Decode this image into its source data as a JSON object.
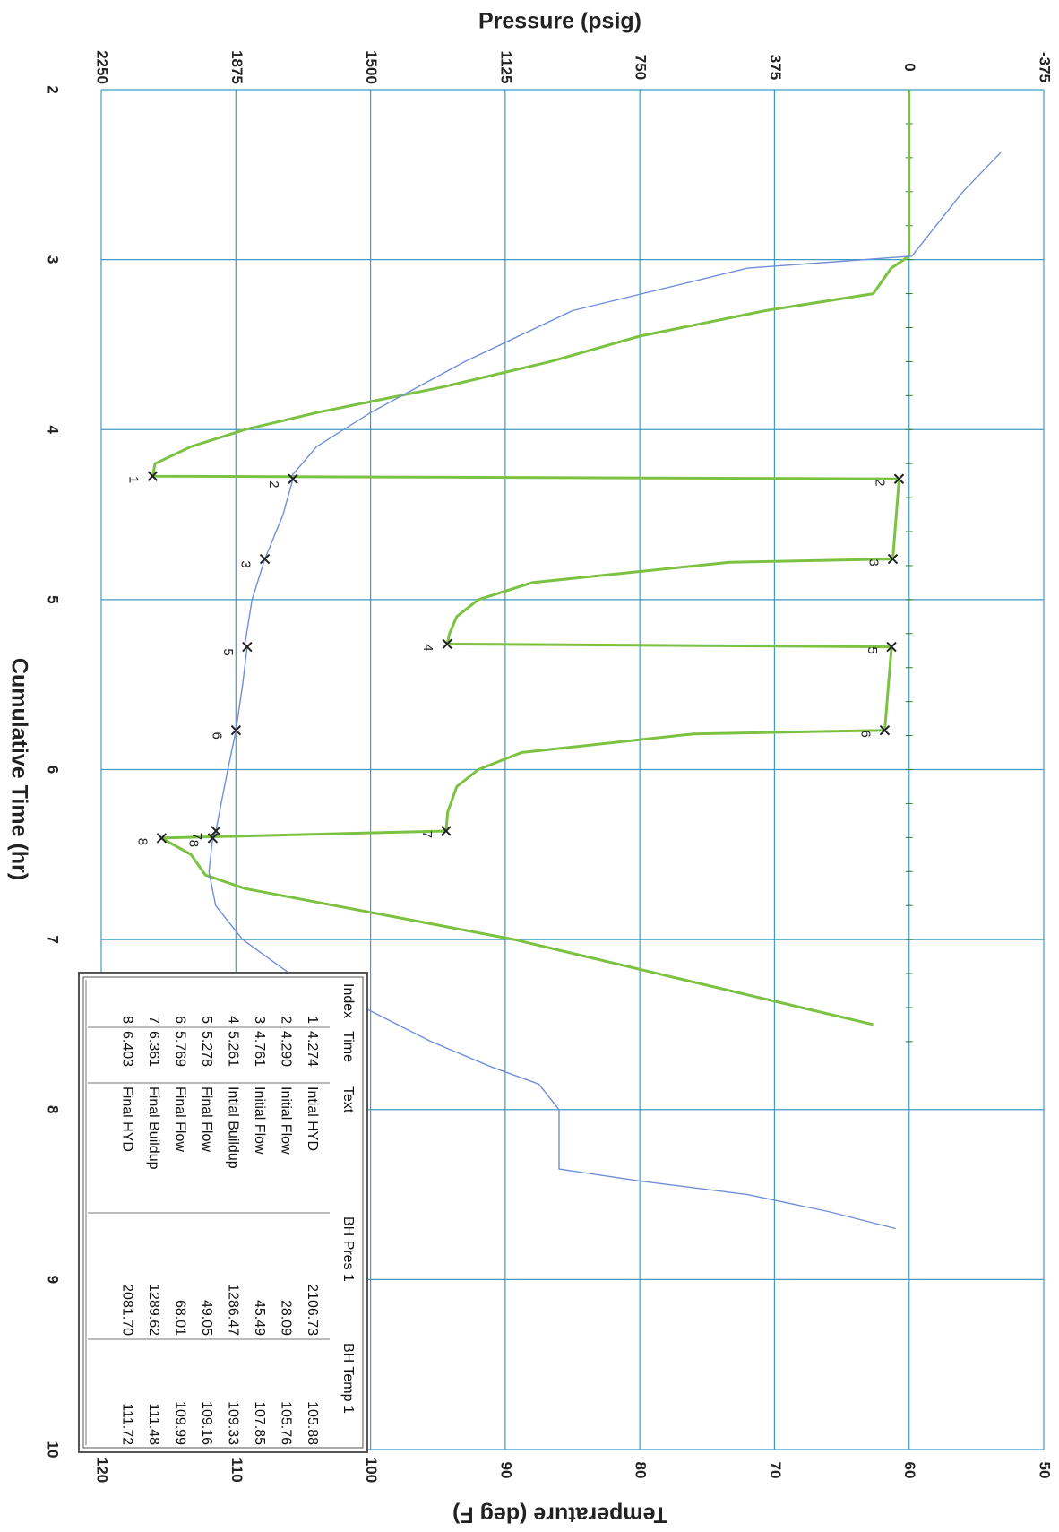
{
  "chart_data": {
    "type": "line",
    "xlabel": "Cumulative Time (hr)",
    "y_left_label": "Pressure (psig)",
    "y_right_label": "Temperature (deg F)",
    "xlim": [
      2,
      10
    ],
    "x_ticks": [
      "2",
      "3",
      "4",
      "5",
      "6",
      "7",
      "8",
      "9",
      "10"
    ],
    "pressure_lim": [
      -375,
      2250
    ],
    "pressure_ticks": [
      "-375",
      "0",
      "375",
      "750",
      "1125",
      "1500",
      "1875",
      "2250"
    ],
    "temperature_lim": [
      50,
      120
    ],
    "temperature_ticks": [
      "50",
      "60",
      "70",
      "80",
      "90",
      "100",
      "110",
      "120"
    ],
    "grid": true,
    "colors": {
      "pressure": "#7cc242",
      "temperature": "#6f8fd6",
      "grid": "#3f9ac4"
    },
    "series": [
      {
        "axis": "pressure",
        "x": [
          2.0,
          2.98,
          3.05,
          3.2,
          3.3,
          3.45,
          3.6,
          3.75,
          3.9,
          4.0,
          4.1,
          4.2,
          4.274,
          4.29,
          4.761,
          4.78,
          4.9,
          5.0,
          5.1,
          5.2,
          5.261,
          5.278,
          5.769,
          5.79,
          5.9,
          6.0,
          6.1,
          6.25,
          6.361,
          6.403,
          6.5,
          6.62,
          6.7,
          6.8,
          7.0,
          7.2,
          7.4,
          7.5
        ],
        "y": [
          0,
          0,
          50,
          100,
          400,
          750,
          1000,
          1300,
          1650,
          1850,
          2000,
          2100,
          2106.73,
          28.09,
          45.49,
          500,
          1050,
          1200,
          1260,
          1280,
          1286.47,
          49.05,
          68.01,
          600,
          1080,
          1200,
          1260,
          1285,
          1289.62,
          2081.7,
          2000,
          1960,
          1850,
          1600,
          1100,
          700,
          300,
          100
        ]
      },
      {
        "axis": "temperature",
        "x": [
          2.37,
          2.6,
          2.8,
          2.98,
          3.05,
          3.3,
          3.6,
          3.9,
          4.1,
          4.274,
          4.29,
          4.5,
          4.761,
          5.0,
          5.261,
          5.278,
          5.5,
          5.769,
          6.0,
          6.2,
          6.361,
          6.403,
          6.6,
          6.8,
          7.0,
          7.2,
          7.4,
          7.6,
          7.75,
          7.85,
          8.0,
          8.2,
          8.35,
          8.42,
          8.5,
          8.6,
          8.7
        ],
        "y": [
          53.2,
          56.0,
          58.0,
          59.8,
          72.0,
          85.0,
          93.0,
          100.0,
          104.0,
          105.88,
          105.76,
          106.5,
          107.85,
          108.8,
          109.33,
          109.16,
          109.5,
          109.99,
          110.6,
          111.1,
          111.48,
          111.72,
          112.0,
          111.5,
          109.5,
          106.0,
          100.5,
          95.5,
          91.0,
          87.5,
          86.0,
          86.0,
          86.0,
          80.0,
          72.0,
          66.0,
          61.0
        ]
      }
    ],
    "markers": [
      {
        "index": "1",
        "x": 4.274,
        "pressure": 2106.73
      },
      {
        "index": "2",
        "x": 4.29,
        "pressure": 28.09
      },
      {
        "index": "3",
        "x": 4.761,
        "pressure": 45.49
      },
      {
        "index": "4",
        "x": 5.261,
        "pressure": 1286.47
      },
      {
        "index": "5",
        "x": 5.278,
        "pressure": 49.05
      },
      {
        "index": "6",
        "x": 5.769,
        "pressure": 68.01
      },
      {
        "index": "7",
        "x": 6.361,
        "pressure": 1289.62
      },
      {
        "index": "8",
        "x": 6.403,
        "pressure": 2081.7
      }
    ],
    "temp_markers": [
      {
        "index": "2",
        "x": 4.29,
        "temperature": 105.76
      },
      {
        "index": "3",
        "x": 4.761,
        "temperature": 107.85
      },
      {
        "index": "5",
        "x": 5.278,
        "temperature": 109.16
      },
      {
        "index": "6",
        "x": 5.769,
        "temperature": 109.99
      },
      {
        "index": "7",
        "x": 6.361,
        "temperature": 111.48
      },
      {
        "index": "8",
        "x": 6.403,
        "temperature": 111.72
      }
    ],
    "table": {
      "headers": [
        "Index",
        "Time",
        "Text",
        "BH Pres 1",
        "BH Temp 1"
      ],
      "rows": [
        [
          "1",
          "4.274",
          "Intial HYD",
          "2106.73",
          "105.88"
        ],
        [
          "2",
          "4.290",
          "Initial Flow",
          "28.09",
          "105.76"
        ],
        [
          "3",
          "4.761",
          "Initial Flow",
          "45.49",
          "107.85"
        ],
        [
          "4",
          "5.261",
          "Intial Buildup",
          "1286.47",
          "109.33"
        ],
        [
          "5",
          "5.278",
          "Final Flow",
          "49.05",
          "109.16"
        ],
        [
          "6",
          "5.769",
          "Final Flow",
          "68.01",
          "109.99"
        ],
        [
          "7",
          "6.361",
          "Final Buildup",
          "1289.62",
          "111.48"
        ],
        [
          "8",
          "6.403",
          "Final HYD",
          "2081.70",
          "111.72"
        ]
      ]
    }
  }
}
